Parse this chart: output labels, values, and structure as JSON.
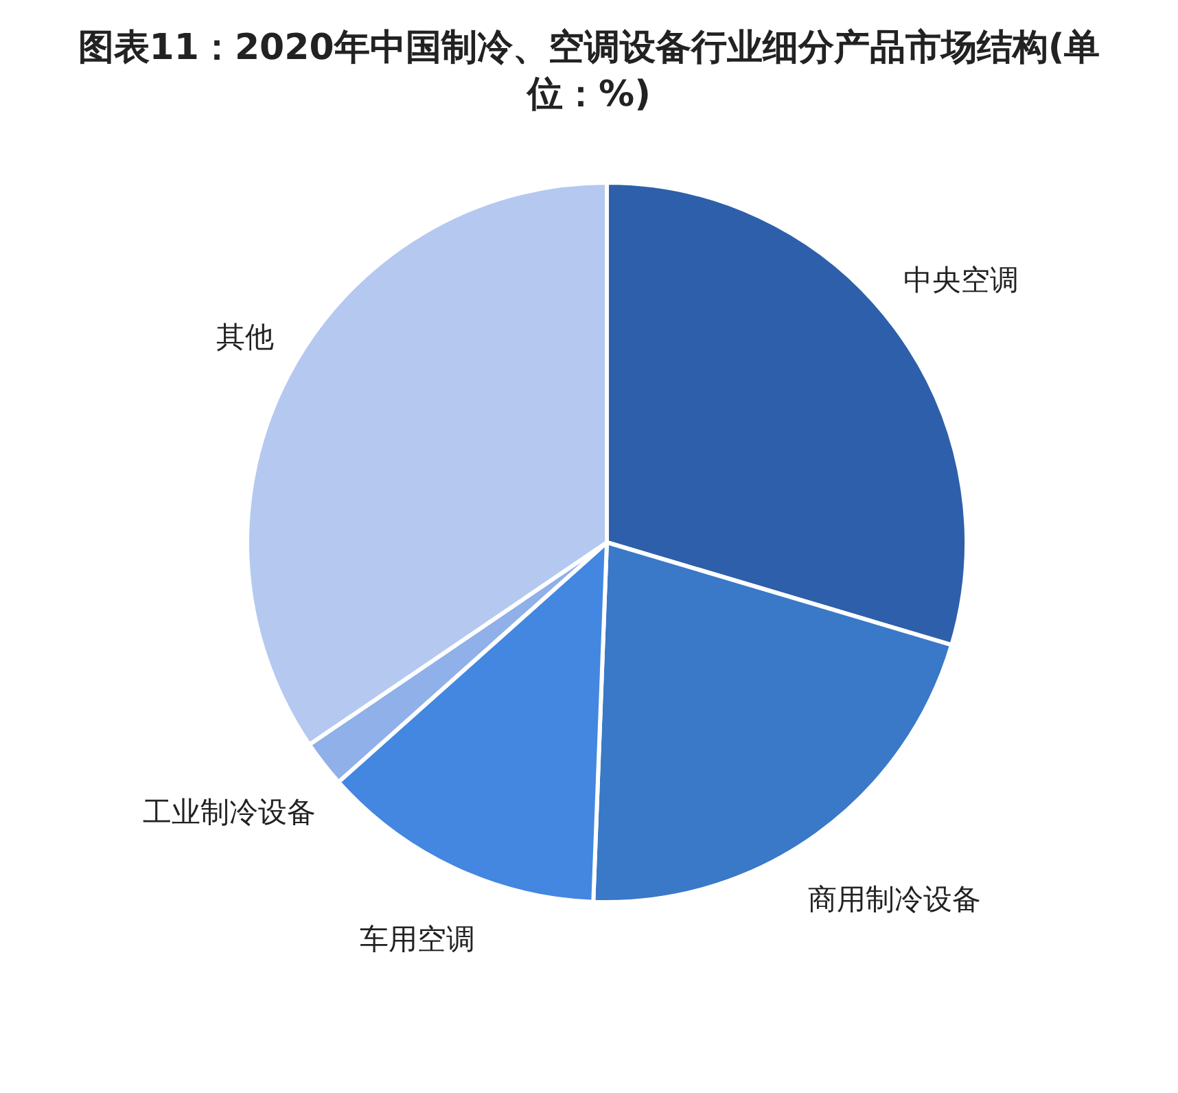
{
  "chart_data": {
    "type": "pie",
    "title": "图表11：2020年中国制冷、空调设备行业细分产品市场结构(单位：%)",
    "categories": [
      "中央空调",
      "商用制冷设备",
      "车用空调",
      "工业制冷设备",
      "其他"
    ],
    "values": [
      29.6,
      21.0,
      12.8,
      2.1,
      34.5
    ],
    "colors": [
      "#2e5faa",
      "#3a78c8",
      "#4387e0",
      "#8fb0e8",
      "#b4c8f0"
    ]
  }
}
